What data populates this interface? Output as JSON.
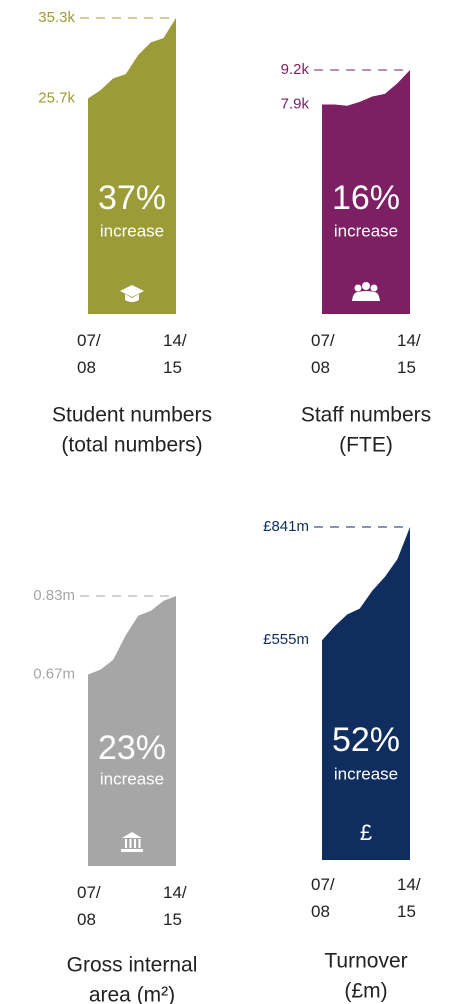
{
  "chart_data": [
    {
      "type": "area",
      "title": [
        "Student numbers",
        "(total numbers)"
      ],
      "color": "#9b9b37",
      "categories": [
        "07/08",
        null,
        null,
        null,
        null,
        null,
        null,
        "14/15"
      ],
      "values": [
        25.7,
        26.7,
        28.1,
        28.6,
        30.9,
        32.4,
        32.9,
        35.3
      ],
      "value_labels": [
        "25.7k",
        null,
        null,
        null,
        null,
        null,
        null,
        "35.3k"
      ],
      "ylim": [
        0,
        35.3
      ],
      "annotations": [
        "37%",
        "increase"
      ]
    },
    {
      "type": "area",
      "title": [
        "Staff numbers",
        "(FTE)"
      ],
      "color": "#7d1f63",
      "categories": [
        "07/08",
        null,
        null,
        null,
        null,
        null,
        null,
        "14/15"
      ],
      "values": [
        7.9,
        7.9,
        7.85,
        8.0,
        8.2,
        8.3,
        8.7,
        9.2
      ],
      "value_labels": [
        "7.9k",
        null,
        null,
        null,
        null,
        null,
        null,
        "9.2k"
      ],
      "ylim": [
        0,
        9.2
      ],
      "annotations": [
        "16%",
        "increase"
      ]
    },
    {
      "type": "area",
      "title": [
        "Gross internal",
        "area (m²)"
      ],
      "color": "#a6a6a6",
      "categories": [
        "07/08",
        null,
        null,
        null,
        null,
        null,
        null,
        "14/15"
      ],
      "values": [
        0.67,
        0.68,
        0.7,
        0.75,
        0.79,
        0.8,
        0.82,
        0.83
      ],
      "value_labels": [
        "0.67m",
        null,
        null,
        null,
        null,
        null,
        null,
        "0.83m"
      ],
      "ylim": [
        0.28,
        0.83
      ],
      "annotations": [
        "23%",
        "increase"
      ]
    },
    {
      "type": "area",
      "title": [
        "Turnover",
        "(£m)"
      ],
      "color": "#0f2e5f",
      "categories": [
        "07/08",
        null,
        null,
        null,
        null,
        null,
        null,
        "14/15"
      ],
      "values": [
        555,
        590,
        620,
        635,
        680,
        715,
        760,
        841
      ],
      "value_labels": [
        "£555m",
        null,
        null,
        null,
        null,
        null,
        null,
        "£841m"
      ],
      "ylim": [
        0,
        841
      ],
      "annotations": [
        "52%",
        "increase"
      ],
      "icon": "£"
    }
  ]
}
